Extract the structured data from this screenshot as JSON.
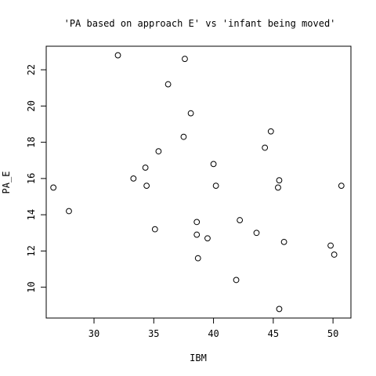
{
  "chart_data": {
    "type": "scatter",
    "title": "'PA based on approach E' vs 'infant being moved'",
    "xlabel": "IBM",
    "ylabel": "PA_E",
    "xlim": [
      26,
      51.5
    ],
    "ylim": [
      8.3,
      23.3
    ],
    "xticks": [
      30,
      35,
      40,
      45,
      50
    ],
    "yticks": [
      10,
      12,
      14,
      16,
      18,
      20,
      22
    ],
    "xtick_labels": [
      "30",
      "35",
      "40",
      "45",
      "50"
    ],
    "ytick_labels": [
      "10",
      "12",
      "14",
      "16",
      "18",
      "20",
      "22"
    ],
    "grid": false,
    "marker": "open-circle",
    "x": [
      26.6,
      27.9,
      32.0,
      33.3,
      34.3,
      34.4,
      35.1,
      35.4,
      36.2,
      37.5,
      37.6,
      38.1,
      38.6,
      38.6,
      38.7,
      39.5,
      40.0,
      40.2,
      41.9,
      42.2,
      43.6,
      44.3,
      44.8,
      45.4,
      45.5,
      45.5,
      45.9,
      49.8,
      50.1,
      50.7
    ],
    "y": [
      15.5,
      14.2,
      22.8,
      16.0,
      16.6,
      15.6,
      13.2,
      17.5,
      21.2,
      18.3,
      22.6,
      19.6,
      13.6,
      12.9,
      11.6,
      12.7,
      16.8,
      15.6,
      10.4,
      13.7,
      13.0,
      17.7,
      18.6,
      15.5,
      15.9,
      8.8,
      12.5,
      12.3,
      11.8,
      15.6
    ]
  }
}
